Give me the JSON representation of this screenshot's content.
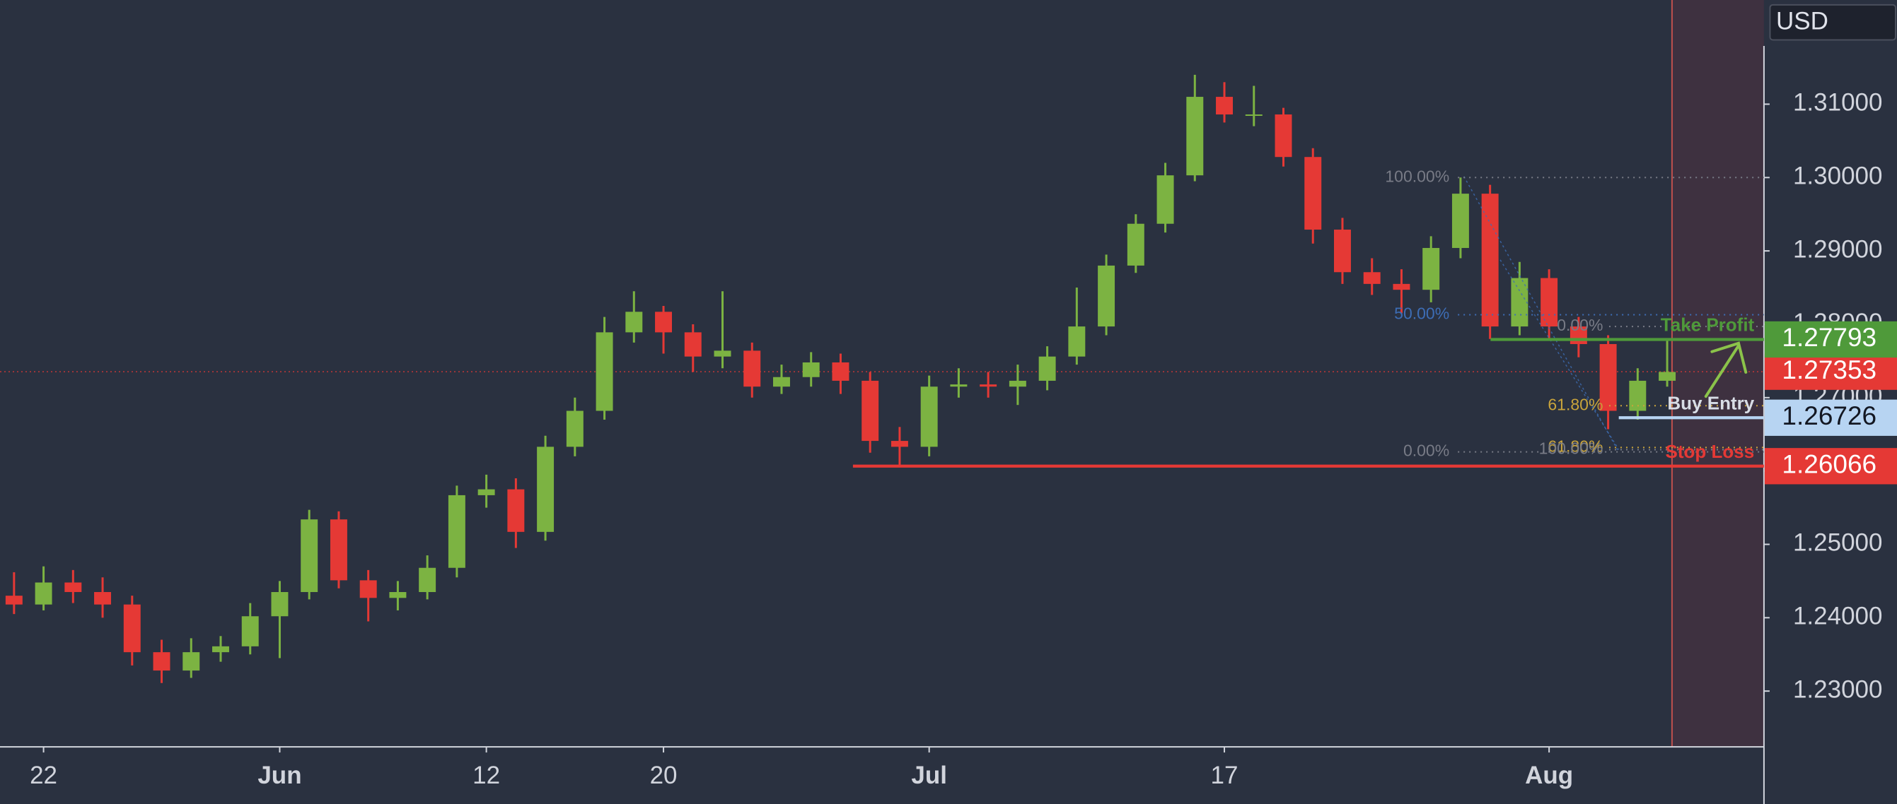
{
  "chart_data": {
    "type": "candlestick",
    "currency": "USD",
    "categories": [
      null,
      "22",
      null,
      null,
      null,
      null,
      null,
      null,
      null,
      "Jun",
      null,
      null,
      null,
      null,
      null,
      null,
      "12",
      null,
      null,
      null,
      null,
      null,
      "20",
      null,
      null,
      null,
      null,
      null,
      null,
      null,
      null,
      "Jul",
      null,
      null,
      null,
      null,
      null,
      null,
      null,
      null,
      null,
      "17",
      null,
      null,
      null,
      null,
      null,
      null,
      null,
      null,
      null,
      null,
      "Aug",
      null,
      null,
      null,
      null
    ],
    "open": [
      1.243,
      1.2418,
      1.2448,
      1.2435,
      1.2418,
      1.2353,
      1.2328,
      1.2353,
      1.2361,
      1.2402,
      1.2435,
      1.2534,
      1.2451,
      1.2427,
      1.2435,
      1.2468,
      1.2567,
      1.2575,
      1.2517,
      1.2633,
      1.2682,
      1.2789,
      1.2817,
      1.2789,
      1.2756,
      1.2764,
      1.2715,
      1.2728,
      1.2748,
      1.2723,
      1.2641,
      1.2633,
      1.2715,
      1.2718,
      1.2715,
      1.2723,
      1.2756,
      1.2797,
      1.288,
      1.2937,
      1.3003,
      1.311,
      1.3086,
      1.3086,
      1.3028,
      1.2929,
      1.2871,
      1.2855,
      1.2847,
      1.2904,
      1.2978,
      1.2797,
      1.2863,
      1.2797,
      1.2773,
      1.2682,
      1.2723
    ],
    "high": [
      1.2462,
      1.247,
      1.2465,
      1.2455,
      1.243,
      1.237,
      1.2372,
      1.2375,
      1.242,
      1.245,
      1.2547,
      1.2545,
      1.2465,
      1.245,
      1.2485,
      1.258,
      1.2595,
      1.259,
      1.2648,
      1.27,
      1.281,
      1.2845,
      1.2825,
      1.28,
      1.2845,
      1.2775,
      1.2745,
      1.2762,
      1.276,
      1.2735,
      1.266,
      1.273,
      1.274,
      1.2735,
      1.2745,
      1.277,
      1.285,
      1.2895,
      1.295,
      1.302,
      1.314,
      1.313,
      1.3125,
      1.3095,
      1.304,
      1.2945,
      1.289,
      1.2875,
      1.292,
      1.3,
      1.299,
      1.2885,
      1.2875,
      1.281,
      1.2785,
      1.274,
      1.278
    ],
    "low": [
      1.2405,
      1.241,
      1.242,
      1.24,
      1.2335,
      1.2311,
      1.2318,
      1.234,
      1.235,
      1.2345,
      1.2425,
      1.244,
      1.2395,
      1.241,
      1.2425,
      1.2455,
      1.255,
      1.2495,
      1.2505,
      1.262,
      1.267,
      1.2775,
      1.276,
      1.2735,
      1.274,
      1.27,
      1.2705,
      1.2715,
      1.2705,
      1.2625,
      1.2607,
      1.262,
      1.27,
      1.27,
      1.269,
      1.271,
      1.2745,
      1.2785,
      1.287,
      1.2925,
      1.2995,
      1.3075,
      1.307,
      1.3015,
      1.291,
      1.2855,
      1.284,
      1.2815,
      1.283,
      1.289,
      1.278,
      1.2785,
      1.278,
      1.2755,
      1.2657,
      1.267,
      1.2715
    ],
    "close": [
      1.2418,
      1.2448,
      1.2435,
      1.2418,
      1.2353,
      1.2328,
      1.2353,
      1.2361,
      1.2402,
      1.2435,
      1.2534,
      1.2451,
      1.2427,
      1.2435,
      1.2468,
      1.2567,
      1.2575,
      1.2517,
      1.2633,
      1.2682,
      1.2789,
      1.2817,
      1.2789,
      1.2756,
      1.2764,
      1.2715,
      1.2728,
      1.2748,
      1.2723,
      1.2641,
      1.2633,
      1.2715,
      1.2718,
      1.2715,
      1.2723,
      1.2756,
      1.2797,
      1.288,
      1.2937,
      1.3003,
      1.311,
      1.3086,
      1.3086,
      1.3028,
      1.2929,
      1.2871,
      1.2855,
      1.2847,
      1.2904,
      1.2978,
      1.2797,
      1.2863,
      1.2797,
      1.2773,
      1.2682,
      1.2723,
      1.2735
    ],
    "up_color": "#7cb342",
    "down_color": "#e53935",
    "ylim": [
      1.2224,
      1.3242
    ],
    "yticks": [
      {
        "value": 1.23,
        "label": "1.23000"
      },
      {
        "value": 1.24,
        "label": "1.24000"
      },
      {
        "value": 1.25,
        "label": "1.25000"
      },
      {
        "value": 1.26,
        "label": "1.26000"
      },
      {
        "value": 1.27,
        "label": "1.27000"
      },
      {
        "value": 1.28,
        "label": "1.28000"
      },
      {
        "value": 1.29,
        "label": "1.29000"
      },
      {
        "value": 1.3,
        "label": "1.30000"
      },
      {
        "value": 1.31,
        "label": "1.31000"
      }
    ],
    "current_price": {
      "value": 1.27353,
      "label": "1.27353",
      "color": "#e53935"
    },
    "levels": [
      {
        "name": "Take Profit",
        "value": 1.27793,
        "label": "1.27793",
        "color": "#4f9a3a",
        "text_color": "#ffffff"
      },
      {
        "name": "Buy Entry",
        "value": 1.26726,
        "label": "1.26726",
        "color": "#b7d4f2",
        "text_color": "#131722"
      },
      {
        "name": "Stop Loss",
        "value": 1.26066,
        "label": "1.26066",
        "color": "#e53935",
        "text_color": "#ffffff"
      }
    ],
    "fib_sets": [
      [
        {
          "label": "100.00%",
          "value": 1.3,
          "color": "#787b86"
        },
        {
          "label": "50.00%",
          "value": 1.2813,
          "color": "#3d6db5"
        },
        {
          "label": "0.00%",
          "value": 1.2626,
          "color": "#787b86"
        }
      ],
      [
        {
          "label": "0.00%",
          "value": 1.2797,
          "color": "#787b86"
        },
        {
          "label": "61.80%",
          "value": 1.2689,
          "color": "#c9a43b"
        },
        {
          "label": "61.80%",
          "value": 1.2632,
          "color": "#c9a43b"
        },
        {
          "label": "100.00%",
          "value": 1.2629,
          "color": "#787b86"
        }
      ]
    ]
  }
}
